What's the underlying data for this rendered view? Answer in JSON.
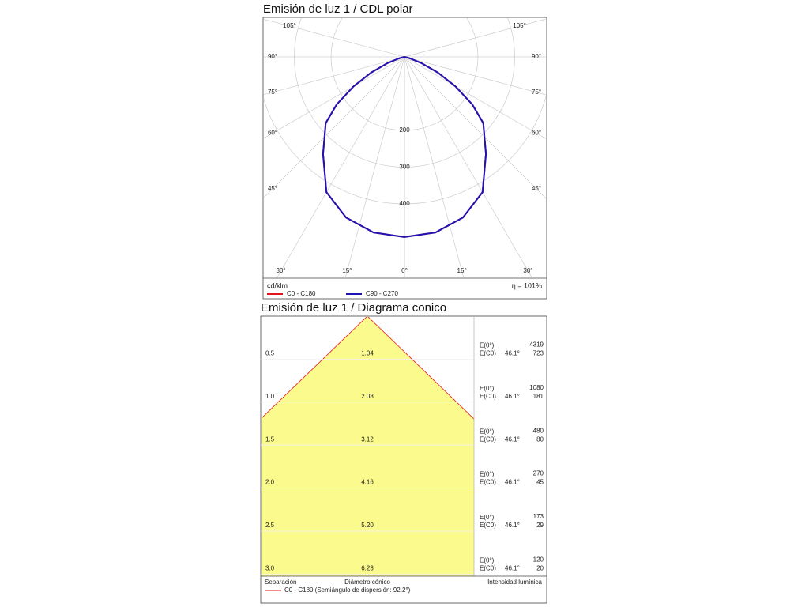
{
  "chart_data": [
    {
      "type": "polar",
      "title": "Emisión de luz 1 / CDL polar",
      "unit": "cd/klm",
      "efficiency": "η = 101%",
      "angles": [
        0,
        10,
        20,
        30,
        40,
        50,
        55,
        60,
        65,
        70,
        75,
        80,
        90
      ],
      "series": [
        {
          "name": "C0 - C180",
          "color": "#e8141c",
          "values": [
            490,
            485,
            465,
            425,
            345,
            280,
            225,
            160,
            100,
            50,
            15,
            0,
            0
          ]
        },
        {
          "name": "C90 - C270",
          "color": "#1c14b4",
          "values": [
            490,
            485,
            465,
            425,
            345,
            280,
            225,
            160,
            100,
            50,
            15,
            0,
            0
          ]
        }
      ],
      "rticks": [
        200,
        300,
        400
      ],
      "angle_ticks": [
        {
          "value": 0,
          "label": "0°"
        },
        {
          "value": 15,
          "label": "15°"
        },
        {
          "value": 30,
          "label": "30°"
        },
        {
          "value": 45,
          "label": "45°"
        },
        {
          "value": 60,
          "label": "60°"
        },
        {
          "value": 75,
          "label": "75°"
        },
        {
          "value": 90,
          "label": "90°"
        },
        {
          "value": 105,
          "label": "105°"
        }
      ],
      "grid": true
    },
    {
      "type": "cone",
      "title": "Emisión de luz 1 / Diagrama conico",
      "columns": [
        "Separación",
        "Diámetro cónico",
        "Intensidad lumínica"
      ],
      "e0_label": "E(0°)",
      "ec0_label": "E(C0)",
      "rows": [
        {
          "separation": "0.5",
          "diameter": "1.04",
          "angle": "46.1°",
          "e0": "4319",
          "ec0": "723"
        },
        {
          "separation": "1.0",
          "diameter": "2.08",
          "angle": "46.1°",
          "e0": "1080",
          "ec0": "181"
        },
        {
          "separation": "1.5",
          "diameter": "3.12",
          "angle": "46.1°",
          "e0": "480",
          "ec0": "80"
        },
        {
          "separation": "2.0",
          "diameter": "4.16",
          "angle": "46.1°",
          "e0": "270",
          "ec0": "45"
        },
        {
          "separation": "2.5",
          "diameter": "5.20",
          "angle": "46.1°",
          "e0": "173",
          "ec0": "29"
        },
        {
          "separation": "3.0",
          "diameter": "6.23",
          "angle": "46.1°",
          "e0": "120",
          "ec0": "20"
        }
      ],
      "legend": {
        "name": "C0 - C180 (Semiángulo de dispersión: 92.2°)",
        "color": "#e8141c"
      },
      "fill": "#fbfa8c"
    }
  ]
}
